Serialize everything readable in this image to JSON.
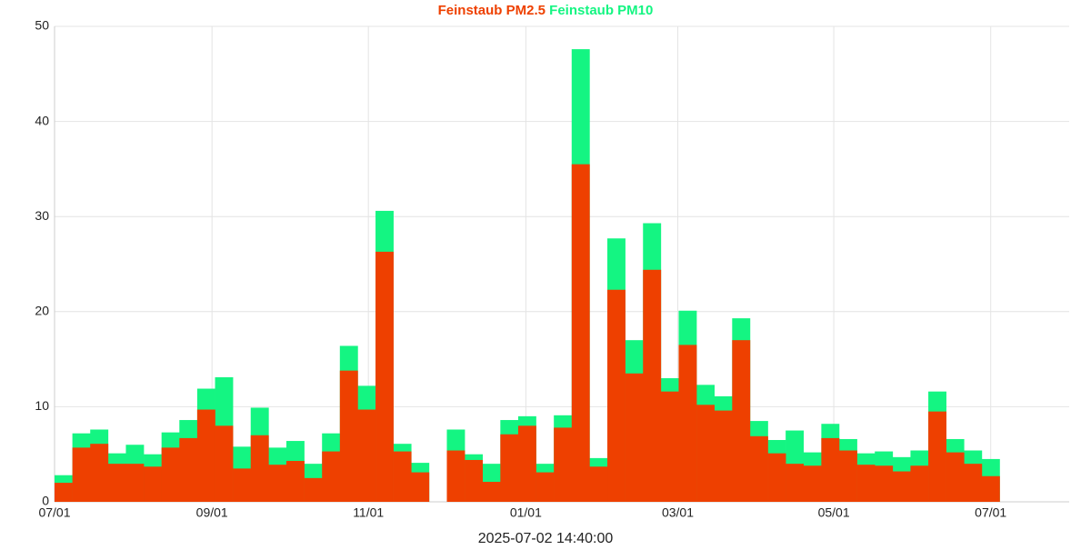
{
  "chart_data": {
    "type": "bar",
    "overlay": true,
    "series": [
      {
        "name": "Feinstaub PM10",
        "color": "#14f582",
        "values": [
          2.8,
          7.2,
          7.6,
          5.1,
          6.0,
          5.0,
          7.3,
          8.6,
          11.9,
          13.1,
          5.8,
          9.9,
          5.7,
          6.4,
          4.0,
          7.2,
          16.4,
          12.2,
          30.6,
          6.1,
          4.1,
          null,
          7.6,
          5.0,
          4.0,
          8.6,
          9.0,
          4.0,
          9.1,
          47.6,
          4.6,
          27.7,
          17.0,
          29.3,
          13.0,
          20.1,
          12.3,
          11.1,
          19.3,
          8.5,
          6.5,
          7.5,
          5.2,
          8.2,
          6.6,
          5.1,
          5.3,
          4.7,
          5.4,
          11.6,
          6.6,
          5.4,
          4.5
        ]
      },
      {
        "name": "Feinstaub PM2.5",
        "color": "#ee4000",
        "values": [
          2.0,
          5.7,
          6.1,
          4.0,
          4.0,
          3.7,
          5.7,
          6.7,
          9.7,
          8.0,
          3.5,
          7.0,
          3.9,
          4.3,
          2.5,
          5.3,
          13.8,
          9.7,
          26.3,
          5.3,
          3.1,
          null,
          5.4,
          4.4,
          2.1,
          7.1,
          8.0,
          3.1,
          7.8,
          35.5,
          3.7,
          22.3,
          13.5,
          24.4,
          11.6,
          16.5,
          10.2,
          9.6,
          17.0,
          6.9,
          5.1,
          4.0,
          3.8,
          6.7,
          5.4,
          3.9,
          3.8,
          3.2,
          3.8,
          9.5,
          5.2,
          4.0,
          2.7
        ]
      }
    ],
    "legend_order": [
      1,
      0
    ],
    "xlabel": "2025-07-02 14:40:00",
    "xlim": [
      0,
      56.9
    ],
    "xticks": [
      {
        "value": 0,
        "label": "07/01"
      },
      {
        "value": 8.83,
        "label": "09/01"
      },
      {
        "value": 17.6,
        "label": "11/01"
      },
      {
        "value": 26.43,
        "label": "01/01"
      },
      {
        "value": 34.95,
        "label": "03/01"
      },
      {
        "value": 43.7,
        "label": "05/01"
      },
      {
        "value": 52.5,
        "label": "07/01"
      }
    ],
    "ylim": [
      0,
      50
    ],
    "yticks": [
      0,
      10,
      20,
      30,
      40,
      50
    ],
    "grid": true
  }
}
